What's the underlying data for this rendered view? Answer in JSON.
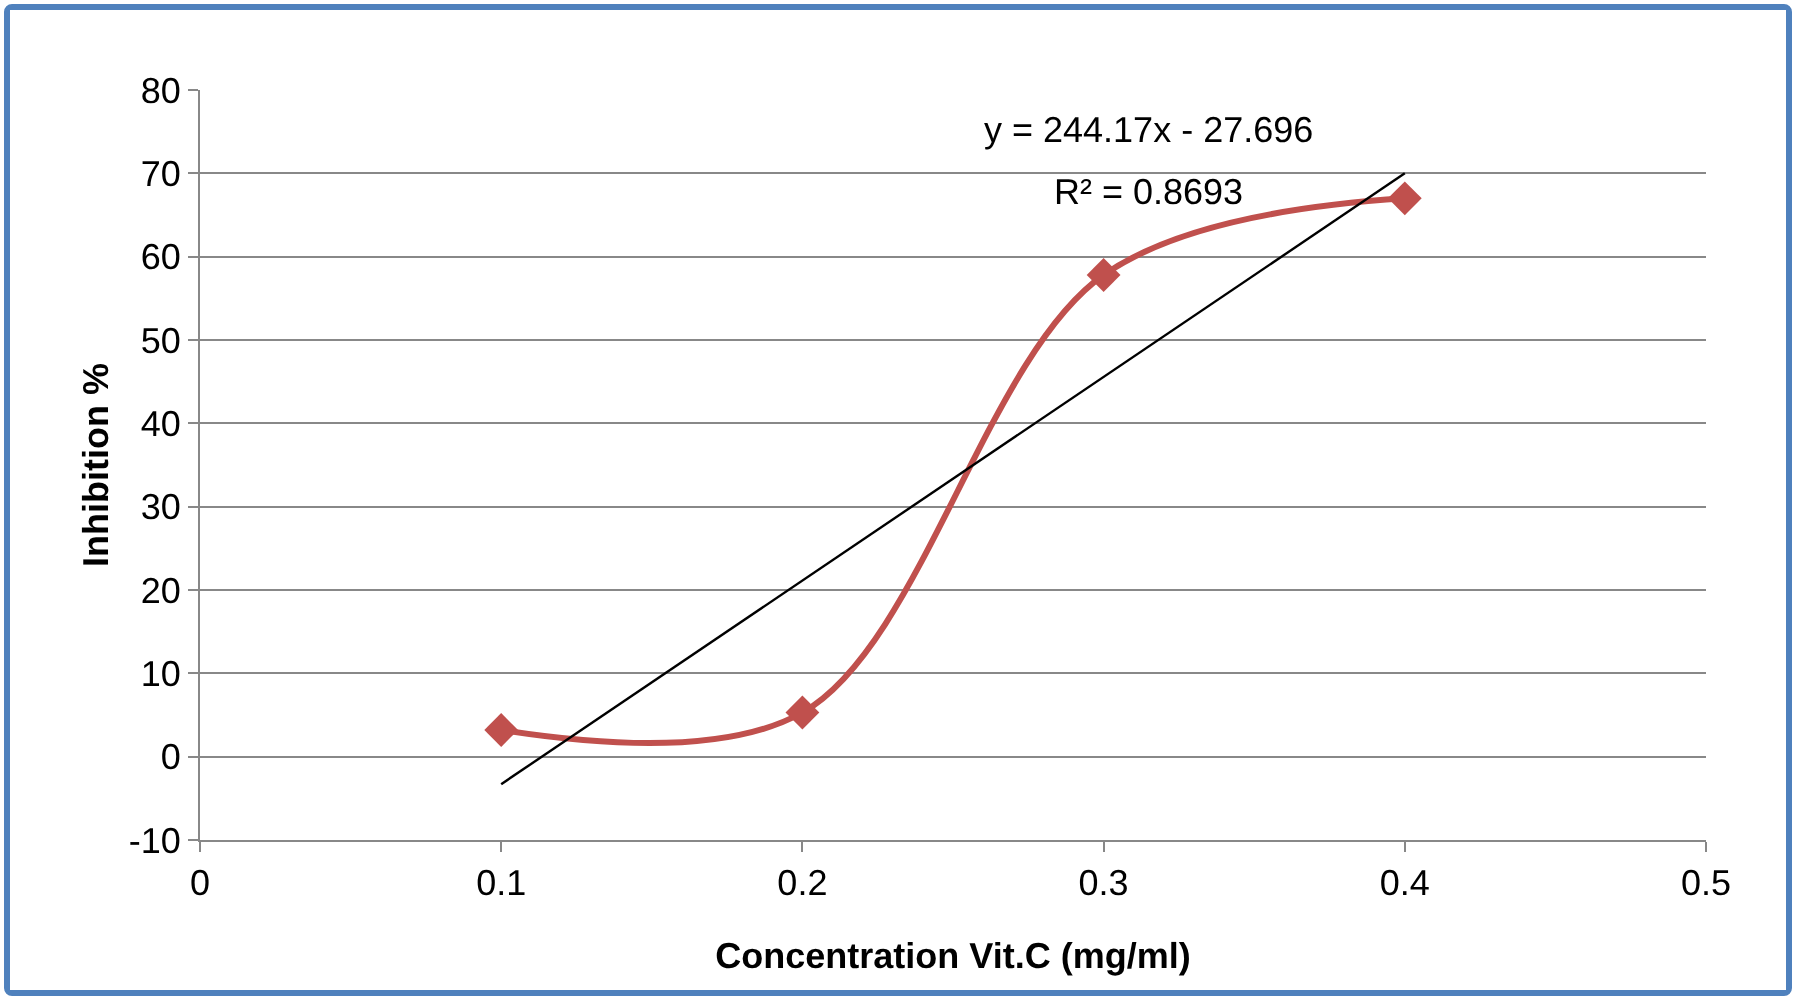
{
  "chart_data": {
    "type": "line",
    "xlabel": "Concentration Vit.C (mg/ml)",
    "ylabel": "Inhibition %",
    "annotations": [
      "y = 244.17x - 27.696",
      "R² = 0.8693"
    ],
    "x": [
      0.1,
      0.2,
      0.3,
      0.4
    ],
    "series": [
      {
        "color": "#c0504d",
        "values": [
          3.2,
          5.3,
          57.8,
          67
        ],
        "marker": "diamond"
      },
      {
        "type": "line",
        "color": "#000000",
        "x": [
          0.1,
          0.4
        ],
        "values": [
          -3.3,
          70
        ],
        "marker": "none"
      }
    ],
    "xlim": [
      0,
      0.5
    ],
    "xticks": [
      0,
      0.1,
      0.2,
      0.3,
      0.4,
      0.5
    ],
    "ylim": [
      -10,
      80
    ],
    "yticks": [
      -10,
      0,
      10,
      20,
      30,
      40,
      50,
      60,
      70,
      80
    ],
    "grid": "y"
  }
}
